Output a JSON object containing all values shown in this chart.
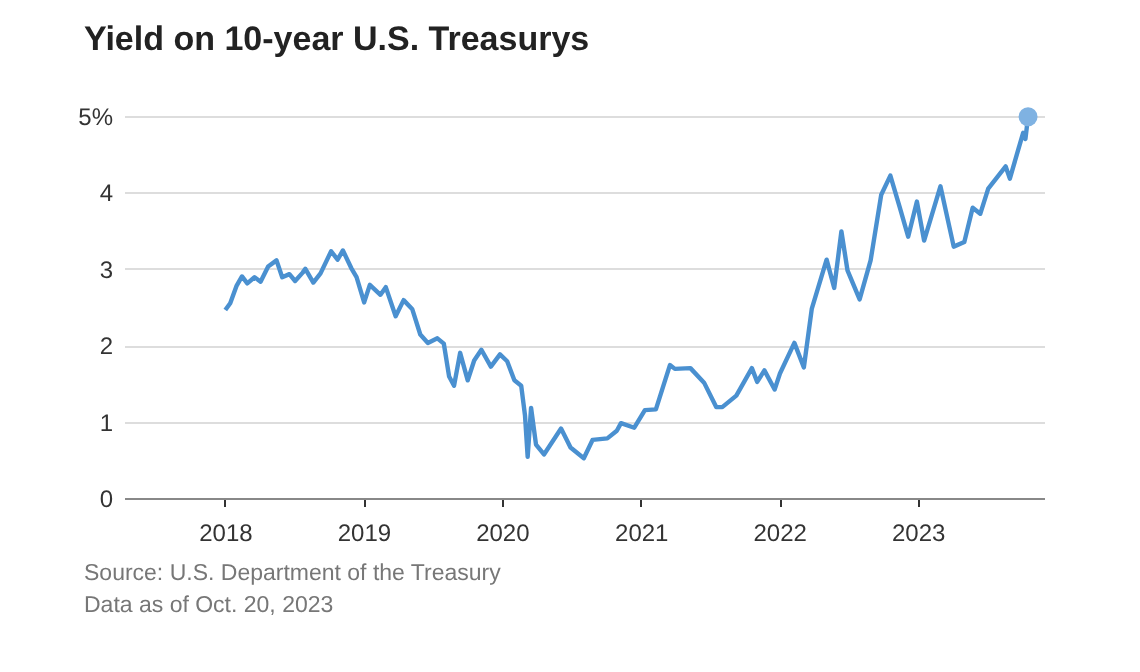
{
  "chart_data": {
    "type": "line",
    "title": "Yield on 10-year U.S. Treasurys",
    "annotations": [
      "Source: U.S. Department of the Treasury",
      "Data as of Oct. 20, 2023"
    ],
    "x": [
      "2018-01-02",
      "2018-01-15",
      "2018-02-01",
      "2018-02-15",
      "2018-03-01",
      "2018-03-20",
      "2018-04-05",
      "2018-04-25",
      "2018-05-17",
      "2018-06-01",
      "2018-06-20",
      "2018-07-05",
      "2018-07-25",
      "2018-08-01",
      "2018-08-22",
      "2018-09-10",
      "2018-10-08",
      "2018-10-25",
      "2018-11-08",
      "2018-11-30",
      "2018-12-14",
      "2019-01-03",
      "2019-01-18",
      "2019-02-15",
      "2019-03-01",
      "2019-03-27",
      "2019-04-17",
      "2019-05-10",
      "2019-05-31",
      "2019-06-20",
      "2019-07-15",
      "2019-08-01",
      "2019-08-15",
      "2019-08-28",
      "2019-09-13",
      "2019-10-03",
      "2019-10-20",
      "2019-11-08",
      "2019-12-03",
      "2019-12-27",
      "2020-01-15",
      "2020-02-03",
      "2020-02-21",
      "2020-03-02",
      "2020-03-09",
      "2020-03-18",
      "2020-03-31",
      "2020-04-21",
      "2020-06-05",
      "2020-06-30",
      "2020-08-04",
      "2020-08-27",
      "2020-10-05",
      "2020-10-30",
      "2020-11-10",
      "2020-12-15",
      "2021-01-12",
      "2021-02-10",
      "2021-03-19",
      "2021-04-01",
      "2021-05-12",
      "2021-06-17",
      "2021-07-19",
      "2021-08-04",
      "2021-09-10",
      "2021-10-21",
      "2021-11-04",
      "2021-11-23",
      "2021-12-20",
      "2022-01-03",
      "2022-02-10",
      "2022-03-07",
      "2022-03-28",
      "2022-05-06",
      "2022-05-26",
      "2022-06-14",
      "2022-06-30",
      "2022-08-01",
      "2022-08-30",
      "2022-09-27",
      "2022-10-21",
      "2022-11-15",
      "2022-12-07",
      "2022-12-30",
      "2023-01-18",
      "2023-03-02",
      "2023-04-06",
      "2023-05-04",
      "2023-05-26",
      "2023-06-15",
      "2023-07-06",
      "2023-08-21",
      "2023-09-01",
      "2023-10-06",
      "2023-10-12",
      "2023-10-19"
    ],
    "series": [
      {
        "color": "#4a90d0",
        "values": [
          2.46,
          2.55,
          2.78,
          2.9,
          2.81,
          2.89,
          2.83,
          3.03,
          3.11,
          2.89,
          2.93,
          2.84,
          2.95,
          3.0,
          2.82,
          2.94,
          3.23,
          3.12,
          3.24,
          3.01,
          2.89,
          2.56,
          2.79,
          2.66,
          2.76,
          2.38,
          2.59,
          2.47,
          2.14,
          2.03,
          2.09,
          2.02,
          1.59,
          1.47,
          1.9,
          1.54,
          1.8,
          1.94,
          1.72,
          1.88,
          1.79,
          1.54,
          1.47,
          1.08,
          0.54,
          1.18,
          0.7,
          0.57,
          0.91,
          0.66,
          0.52,
          0.76,
          0.78,
          0.88,
          0.98,
          0.92,
          1.15,
          1.16,
          1.74,
          1.69,
          1.7,
          1.51,
          1.19,
          1.19,
          1.34,
          1.7,
          1.52,
          1.67,
          1.42,
          1.63,
          2.03,
          1.71,
          2.48,
          3.12,
          2.75,
          3.49,
          2.98,
          2.6,
          3.11,
          3.97,
          4.22,
          3.8,
          3.42,
          3.88,
          3.37,
          4.08,
          3.29,
          3.35,
          3.8,
          3.72,
          4.05,
          4.34,
          4.18,
          4.78,
          4.7,
          4.99
        ]
      },
      {
        "type": "scatter",
        "color": "#7fb2e2",
        "x": [
          "2023-10-19"
        ],
        "values": [
          4.99
        ],
        "marker": "circle"
      }
    ],
    "xlim": [
      "2017-04-10",
      "2023-11-30"
    ],
    "xticks": [
      "2018",
      "2019",
      "2020",
      "2021",
      "2022",
      "2023"
    ],
    "ylim": [
      0,
      5
    ],
    "yticks": [
      0,
      1,
      2,
      3,
      4,
      {
        "value": 5,
        "label": "5%"
      }
    ],
    "grid": "y"
  }
}
